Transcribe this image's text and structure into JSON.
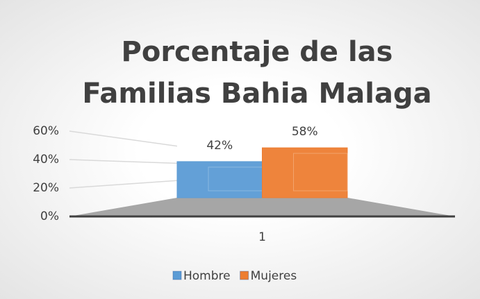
{
  "chart_data": {
    "type": "bar3d",
    "title": "Porcentaje de las Familias Bahia Malaga",
    "categories": [
      "1"
    ],
    "series": [
      {
        "name": "Hombre",
        "color": "#5b9bd5",
        "values": [
          42
        ],
        "value_labels": [
          "42%"
        ]
      },
      {
        "name": "Mujeres",
        "color": "#ed7d31",
        "values": [
          58
        ],
        "value_labels": [
          "58%"
        ]
      }
    ],
    "ylim": [
      0,
      60
    ],
    "yticks": [
      {
        "value": 0,
        "label": "0%"
      },
      {
        "value": 20,
        "label": "20%"
      },
      {
        "value": 40,
        "label": "40%"
      },
      {
        "value": 60,
        "label": "60%"
      }
    ],
    "grid": true,
    "legend": "bottom"
  }
}
